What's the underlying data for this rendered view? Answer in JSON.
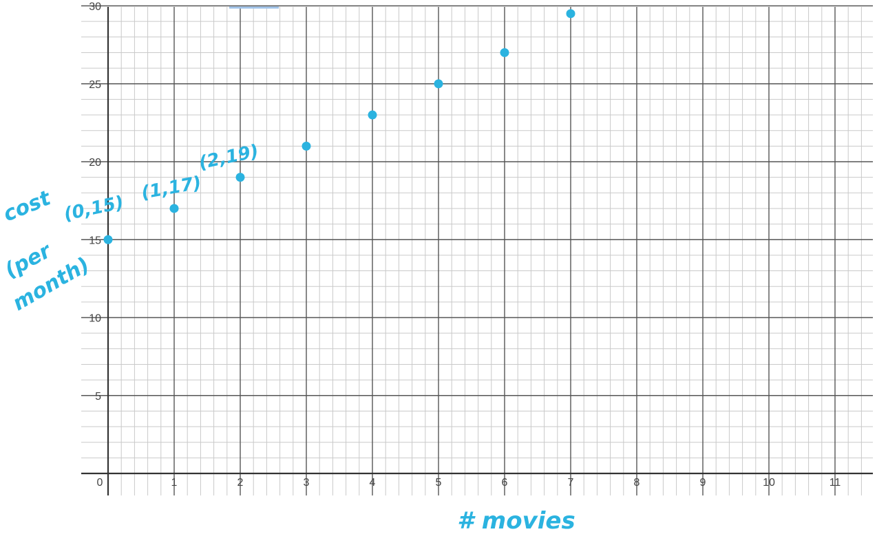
{
  "chart_data": {
    "type": "scatter",
    "title": "",
    "xlabel": "# movies",
    "ylabel_lines": [
      "cost",
      "(per",
      "month)"
    ],
    "x_ticks": [
      "0",
      "1",
      "2",
      "3",
      "4",
      "5",
      "6",
      "7",
      "8",
      "9",
      "10",
      "11"
    ],
    "y_ticks": [
      "5",
      "10",
      "15",
      "20",
      "25",
      "30"
    ],
    "xlim": [
      0,
      11.5
    ],
    "ylim": [
      0,
      30
    ],
    "grid": true,
    "point_color": "#2bb3e0",
    "series": [
      {
        "x": [
          0,
          1,
          2,
          3,
          4,
          5,
          6,
          7
        ],
        "y": [
          15,
          17,
          19,
          21,
          23,
          25,
          27,
          29.5
        ]
      }
    ],
    "annotations": [
      {
        "text": "(0,15)",
        "x": 0,
        "y": 15
      },
      {
        "text": "(1,17)",
        "x": 1,
        "y": 17
      },
      {
        "text": "(2,19)",
        "x": 2,
        "y": 19
      }
    ]
  }
}
